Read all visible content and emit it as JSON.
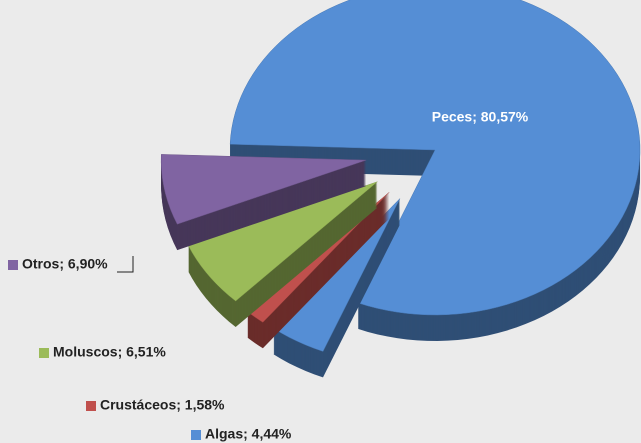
{
  "chart_data": {
    "type": "pie",
    "values": [
      80.57,
      4.44,
      1.58,
      6.51,
      6.9
    ],
    "value_labels": [
      "Peces; 80,57%",
      "Algas; 4,44%",
      "Crustáceos; 1,58%",
      "Moluscos; 6,51%",
      "Otros; 6,90%"
    ],
    "colors": [
      "#558ed5",
      "#558ed5",
      "#c0504d",
      "#9bbb59",
      "#8064a2"
    ]
  }
}
